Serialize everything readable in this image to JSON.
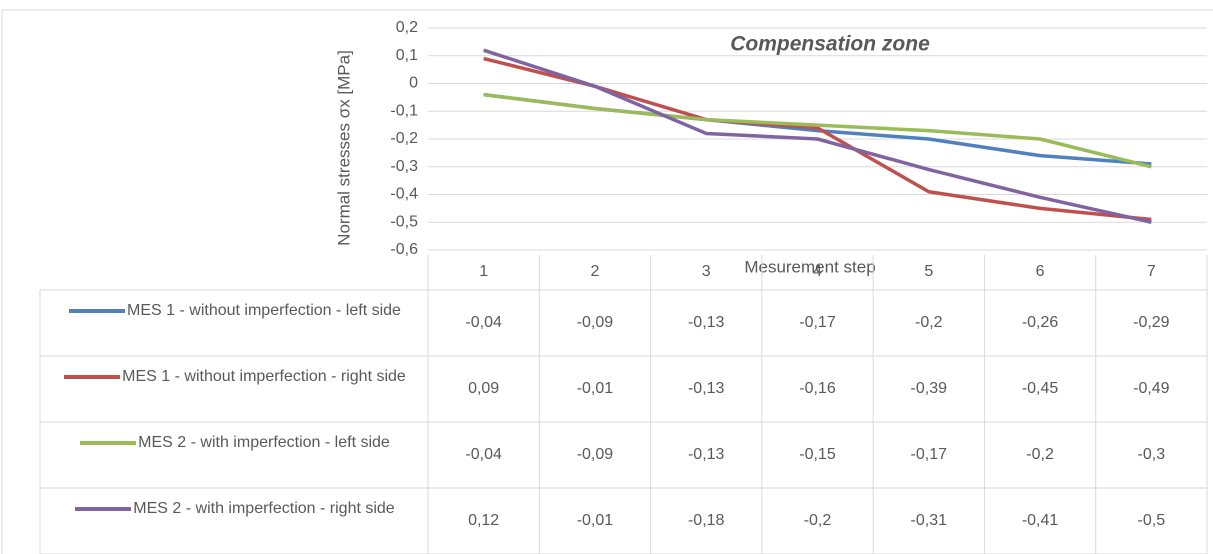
{
  "chart_data": {
    "type": "line",
    "title": "Compensation zone",
    "x_label": "Mesurement step",
    "y_label": "Normal stresses σx [MPa]",
    "categories": [
      "1",
      "2",
      "3",
      "4",
      "5",
      "6",
      "7"
    ],
    "ylim": [
      -0.6,
      0.2
    ],
    "yticks": [
      {
        "value": -0.6,
        "label": "-0,6"
      },
      {
        "value": -0.5,
        "label": "-0,5"
      },
      {
        "value": -0.4,
        "label": "-0,4"
      },
      {
        "value": -0.3,
        "label": "-0,3"
      },
      {
        "value": -0.2,
        "label": "-0,2"
      },
      {
        "value": -0.1,
        "label": "-0,1"
      },
      {
        "value": 0,
        "label": "0"
      },
      {
        "value": 0.1,
        "label": "0,1"
      },
      {
        "value": 0.2,
        "label": "0,2"
      }
    ],
    "grid": true,
    "series": [
      {
        "name": "MES 1 - without imperfection - left side",
        "color": "#4f81bd",
        "values": [
          -0.04,
          -0.09,
          -0.13,
          -0.17,
          -0.2,
          -0.26,
          -0.29
        ],
        "value_labels": [
          "-0,04",
          "-0,09",
          "-0,13",
          "-0,17",
          "-0,2",
          "-0,26",
          "-0,29"
        ]
      },
      {
        "name": "MES 1 - without imperfection - right side",
        "color": "#c0504d",
        "values": [
          0.09,
          -0.01,
          -0.13,
          -0.16,
          -0.39,
          -0.45,
          -0.49
        ],
        "value_labels": [
          "0,09",
          "-0,01",
          "-0,13",
          "-0,16",
          "-0,39",
          "-0,45",
          "-0,49"
        ]
      },
      {
        "name": "MES 2 - with imperfection - left side",
        "color": "#9bbb59",
        "values": [
          -0.04,
          -0.09,
          -0.13,
          -0.15,
          -0.17,
          -0.2,
          -0.3
        ],
        "value_labels": [
          "-0,04",
          "-0,09",
          "-0,13",
          "-0,15",
          "-0,17",
          "-0,2",
          "-0,3"
        ]
      },
      {
        "name": "MES 2 - with imperfection - right side",
        "color": "#8064a2",
        "values": [
          0.12,
          -0.01,
          -0.18,
          -0.2,
          -0.31,
          -0.41,
          -0.5
        ],
        "value_labels": [
          "0,12",
          "-0,01",
          "-0,18",
          "-0,2",
          "-0,31",
          "-0,41",
          "-0,5"
        ]
      }
    ]
  }
}
